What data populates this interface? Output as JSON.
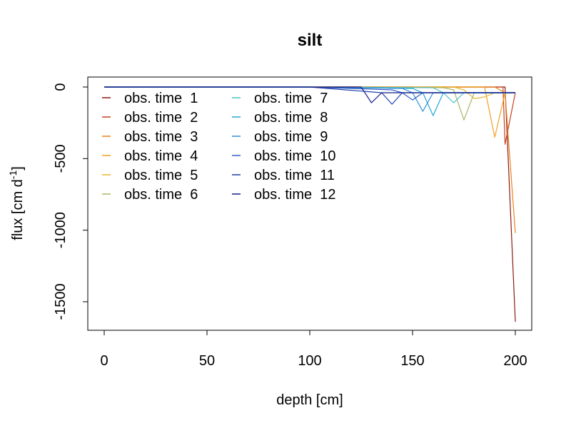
{
  "chart_data": {
    "type": "line",
    "title": "silt",
    "xlabel": "depth [cm]",
    "ylabel_main": "flux [cm d",
    "ylabel_sup": "-1",
    "ylabel_end": "]",
    "xlim": [
      0,
      200
    ],
    "ylim": [
      -1700,
      70
    ],
    "x_ticks": [
      0,
      50,
      100,
      150,
      200
    ],
    "y_ticks": [
      0,
      -500,
      -1000,
      -1500
    ],
    "grid": false,
    "legend_position": "top-left",
    "series": [
      {
        "name": "obs. time  1",
        "color": "#8B1A0E",
        "x": [
          0,
          100,
          180,
          190,
          195,
          200
        ],
        "y": [
          0,
          0,
          0,
          0,
          0,
          -1640
        ]
      },
      {
        "name": "obs. time  2",
        "color": "#C8401E",
        "x": [
          0,
          100,
          180,
          190,
          194,
          195,
          200
        ],
        "y": [
          0,
          0,
          0,
          0,
          0,
          -400,
          -40
        ]
      },
      {
        "name": "obs. time  3",
        "color": "#E8801E",
        "x": [
          0,
          100,
          180,
          190,
          195,
          200
        ],
        "y": [
          0,
          0,
          0,
          0,
          -40,
          -1020
        ]
      },
      {
        "name": "obs. time  4",
        "color": "#F0A020",
        "x": [
          0,
          100,
          180,
          185,
          190,
          195,
          200
        ],
        "y": [
          0,
          0,
          0,
          0,
          -350,
          -40,
          -40
        ]
      },
      {
        "name": "obs. time  5",
        "color": "#E8B830",
        "x": [
          0,
          100,
          170,
          175,
          180,
          185,
          190,
          195,
          200
        ],
        "y": [
          0,
          0,
          0,
          -20,
          -80,
          -70,
          -40,
          -40,
          -40
        ]
      },
      {
        "name": "obs. time  6",
        "color": "#A8B860",
        "x": [
          0,
          100,
          165,
          170,
          175,
          180,
          185,
          190,
          195,
          200
        ],
        "y": [
          0,
          0,
          -5,
          -20,
          -230,
          -40,
          -40,
          -40,
          -40,
          -40
        ]
      },
      {
        "name": "obs. time  7",
        "color": "#50C0C8",
        "x": [
          0,
          100,
          160,
          165,
          170,
          175,
          180,
          185,
          190,
          195,
          200
        ],
        "y": [
          0,
          0,
          -5,
          -40,
          -110,
          -40,
          -40,
          -40,
          -40,
          -40,
          -40
        ]
      },
      {
        "name": "obs. time  8",
        "color": "#20A8D8",
        "x": [
          0,
          100,
          150,
          155,
          160,
          165,
          170,
          175,
          180,
          185,
          190,
          195,
          200
        ],
        "y": [
          0,
          0,
          -10,
          -40,
          -200,
          -40,
          -40,
          -40,
          -40,
          -40,
          -40,
          -40,
          -40
        ]
      },
      {
        "name": "obs. time  9",
        "color": "#3090D8",
        "x": [
          0,
          100,
          145,
          150,
          155,
          160,
          165,
          170,
          175,
          180,
          185,
          190,
          195,
          200
        ],
        "y": [
          0,
          0,
          -10,
          -40,
          -170,
          -40,
          -40,
          -40,
          -40,
          -40,
          -40,
          -40,
          -40,
          -40
        ]
      },
      {
        "name": "obs. time  10",
        "color": "#3060C8",
        "x": [
          0,
          100,
          140,
          145,
          150,
          155,
          160,
          165,
          170,
          175,
          180,
          185,
          190,
          195,
          200
        ],
        "y": [
          0,
          0,
          -20,
          -40,
          -90,
          -40,
          -40,
          -40,
          -40,
          -40,
          -40,
          -40,
          -40,
          -40,
          -40
        ]
      },
      {
        "name": "obs. time  11",
        "color": "#2040A8",
        "x": [
          0,
          100,
          135,
          140,
          145,
          150,
          155,
          160,
          165,
          170,
          175,
          180,
          185,
          190,
          195,
          200
        ],
        "y": [
          0,
          0,
          -40,
          -120,
          -40,
          -40,
          -40,
          -40,
          -40,
          -40,
          -40,
          -40,
          -40,
          -40,
          -40,
          -40
        ]
      },
      {
        "name": "obs. time  12",
        "color": "#101C88",
        "x": [
          0,
          100,
          125,
          130,
          135,
          140,
          145,
          150,
          155,
          160,
          165,
          170,
          175,
          180,
          185,
          190,
          195,
          200
        ],
        "y": [
          0,
          0,
          0,
          -110,
          -40,
          -40,
          -40,
          -40,
          -40,
          -40,
          -40,
          -40,
          -40,
          -40,
          -40,
          -40,
          -40,
          -40
        ]
      }
    ]
  }
}
